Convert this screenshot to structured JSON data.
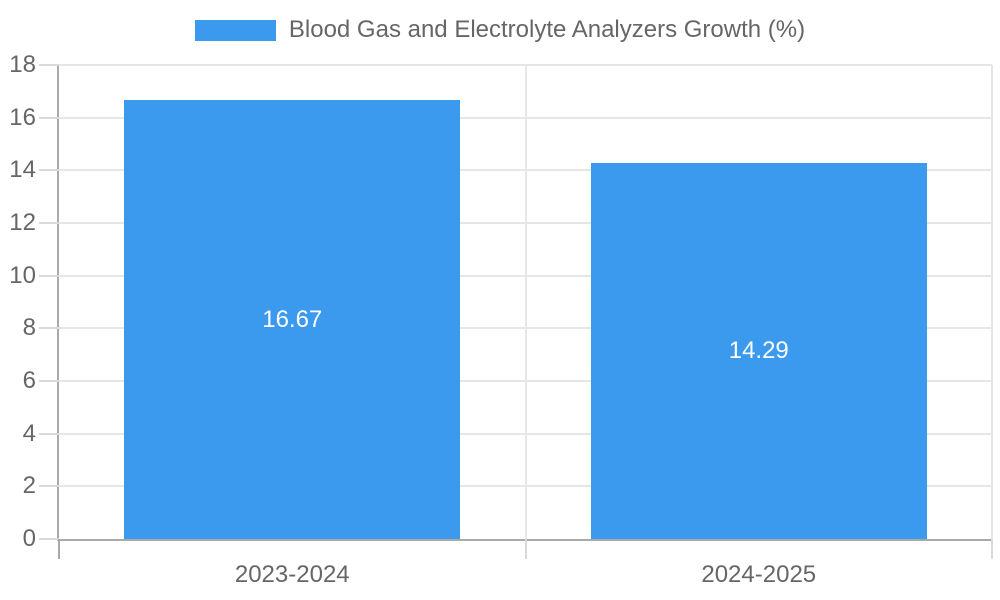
{
  "chart_data": {
    "type": "bar",
    "title": "Blood Gas and Electrolyte Analyzers Growth (%)",
    "legend_entries": [
      "Blood Gas and Electrolyte Analyzers Growth (%)"
    ],
    "legend_position": "top",
    "categories": [
      "2023-2024",
      "2024-2025"
    ],
    "values": [
      16.67,
      14.29
    ],
    "data_labels": [
      "16.67",
      "14.29"
    ],
    "ylim": [
      0,
      18
    ],
    "yticks": [
      0,
      2,
      4,
      6,
      8,
      10,
      12,
      14,
      16,
      18
    ],
    "grid": true,
    "xlabel": "",
    "ylabel": ""
  },
  "colors": {
    "bar": "#3B99EE",
    "axis_text": "#666666",
    "grid_line": "#E6E6E6",
    "tick_line": "#D9D9D9",
    "axis_line": "#A9A9A9",
    "data_label": "#FFFFFF",
    "background": "#FFFFFF"
  }
}
